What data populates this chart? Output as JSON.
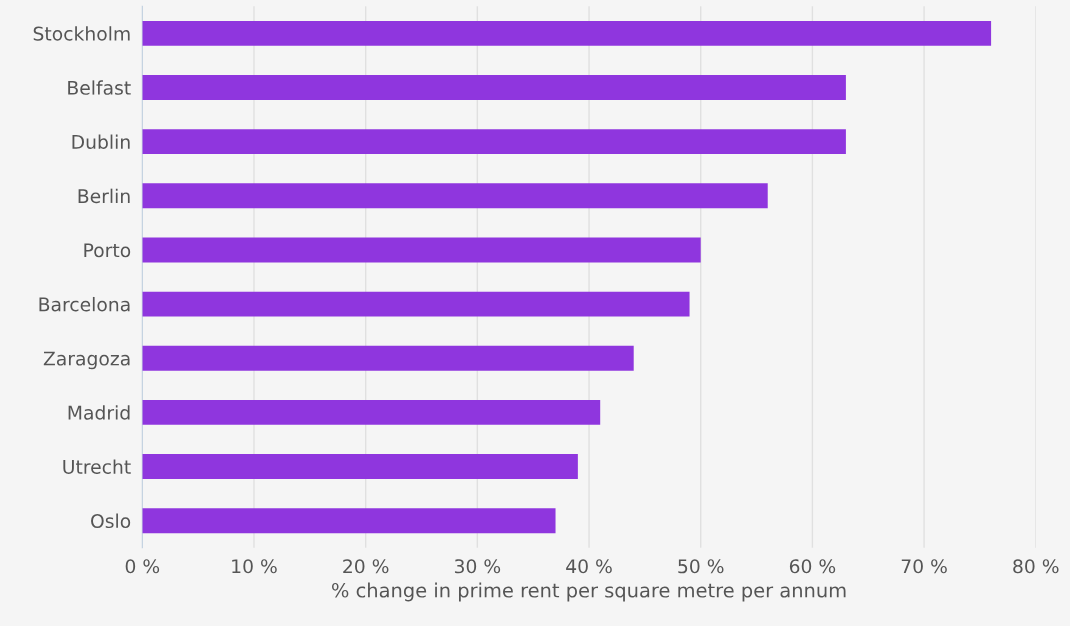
{
  "chart_data": {
    "type": "bar",
    "orientation": "horizontal",
    "xlabel": "% change in prime rent per square metre per annum",
    "categories": [
      "Stockholm",
      "Belfast",
      "Dublin",
      "Berlin",
      "Porto",
      "Barcelona",
      "Zaragoza",
      "Madrid",
      "Utrecht",
      "Oslo"
    ],
    "values": [
      76,
      63,
      63,
      56,
      50,
      49,
      44,
      41,
      39,
      37
    ],
    "color": "#8f36de",
    "xlim": [
      0,
      80
    ],
    "xticks": [
      {
        "value": 0,
        "label": "0 %"
      },
      {
        "value": 10,
        "label": "10 %"
      },
      {
        "value": 20,
        "label": "20 %"
      },
      {
        "value": 30,
        "label": "30 %"
      },
      {
        "value": 40,
        "label": "40 %"
      },
      {
        "value": 50,
        "label": "50 %"
      },
      {
        "value": 60,
        "label": "60 %"
      },
      {
        "value": 70,
        "label": "70 %"
      },
      {
        "value": 80,
        "label": "80 %"
      }
    ],
    "grid": "x",
    "legend": false
  }
}
